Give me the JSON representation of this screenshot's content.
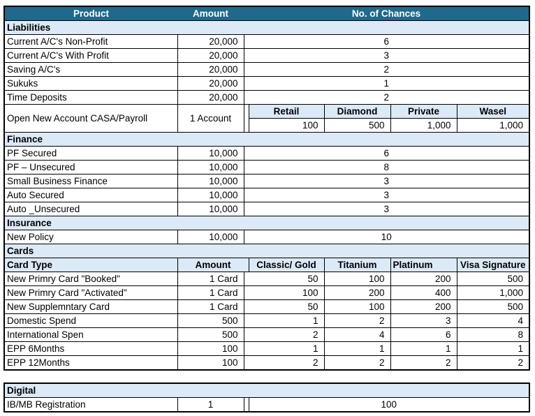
{
  "colors": {
    "header_bg": "#1f698c",
    "header_text": "#ffffff",
    "section_bg": "#dce9f7",
    "border": "#000000"
  },
  "main_table": {
    "rows": [
      {
        "type": "header",
        "product": "Product",
        "amount": "Amount",
        "chances": "No. of Chances"
      },
      {
        "type": "section",
        "label": "Liabilities"
      },
      {
        "type": "simple",
        "product": "Current A/C's Non-Profit",
        "amount": "20,000",
        "chances": "6"
      },
      {
        "type": "simple",
        "product": "Current A/C's With Profit",
        "amount": "20,000",
        "chances": "3"
      },
      {
        "type": "simple",
        "product": "Saving A/C's",
        "amount": "20,000",
        "chances": "2"
      },
      {
        "type": "simple",
        "product": "Sukuks",
        "amount": "20,000",
        "chances": "1"
      },
      {
        "type": "simple",
        "product": "Time Deposits",
        "amount": "20,000",
        "chances": "2"
      },
      {
        "type": "casa",
        "product": "Open New Account CASA/Payroll",
        "amount": "1 Account",
        "columns": [
          "Retail",
          "Diamond",
          "Private",
          "Wasel"
        ],
        "values": [
          "100",
          "500",
          "1,000",
          "1,000"
        ]
      },
      {
        "type": "section",
        "label": "Finance"
      },
      {
        "type": "simple",
        "product": "PF Secured",
        "amount": "10,000",
        "chances": "6"
      },
      {
        "type": "simple",
        "product": "PF – Unsecured",
        "amount": "10,000",
        "chances": "8"
      },
      {
        "type": "simple",
        "product": "Small Business Finance",
        "amount": "10,000",
        "chances": "3"
      },
      {
        "type": "simple",
        "product": "Auto Secured",
        "amount": "10,000",
        "chances": "3"
      },
      {
        "type": "simple",
        "product": "Auto _Unsecured",
        "amount": "10,000",
        "chances": "3"
      },
      {
        "type": "section",
        "label": "Insurance"
      },
      {
        "type": "simple",
        "product": "New Policy",
        "amount": "10,000",
        "chances": "10"
      },
      {
        "type": "section",
        "label": "Cards"
      },
      {
        "type": "cardhead",
        "cells": [
          "Card Type",
          "Amount",
          "Classic/ Gold",
          "Titanium",
          "Platinum",
          "Visa Signature"
        ]
      },
      {
        "type": "card",
        "product": "New Primry Card \"Booked\"",
        "amount": "1 Card",
        "values": [
          "50",
          "100",
          "200",
          "500"
        ]
      },
      {
        "type": "card",
        "product": "New Primry Card \"Activated\"",
        "amount": "1 Card",
        "values": [
          "100",
          "200",
          "400",
          "1,000"
        ]
      },
      {
        "type": "card",
        "product": "New Supplemntary Card",
        "amount": "1 Card",
        "values": [
          "50",
          "100",
          "200",
          "500"
        ]
      },
      {
        "type": "card",
        "product": "Domestic Spend",
        "amount": "500",
        "values": [
          "1",
          "2",
          "3",
          "4"
        ]
      },
      {
        "type": "card",
        "product": "International Spen",
        "amount": "500",
        "values": [
          "2",
          "4",
          "6",
          "8"
        ]
      },
      {
        "type": "card",
        "product": "EPP 6Months",
        "amount": "100",
        "values": [
          "1",
          "1",
          "1",
          "1"
        ]
      },
      {
        "type": "card",
        "product": "EPP 12Months",
        "amount": "100",
        "values": [
          "2",
          "2",
          "2",
          "2"
        ]
      }
    ]
  },
  "digital_table": {
    "rows": [
      {
        "type": "section",
        "label": "Digital"
      },
      {
        "type": "digital",
        "product": "IB/MB Registration",
        "amount": "1",
        "chances": "100"
      }
    ]
  }
}
